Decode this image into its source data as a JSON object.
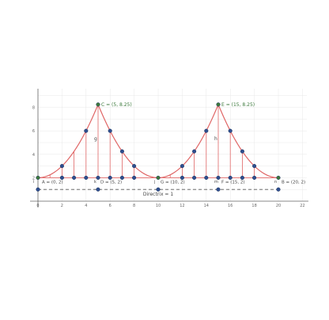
{
  "axes": {
    "x_ticks": [
      "0",
      "2",
      "4",
      "6",
      "8",
      "10",
      "12",
      "14",
      "16",
      "18",
      "20",
      "22"
    ],
    "y_ticks": [
      "2",
      "4",
      "6",
      "8"
    ]
  },
  "points": {
    "A": "A = (0, 2)",
    "B": "B = (20, 2)",
    "C": "C = (5, 8.25)",
    "D": "D = (5, 2)",
    "E": "E = (15, 8.25)",
    "F": "F = (15, 2)",
    "G": "G = (10, 2)"
  },
  "segment_labels": {
    "g": "g",
    "h": "h",
    "i": "i",
    "j": "j",
    "k": "k",
    "m": "m",
    "n": "n"
  },
  "directrix_label": "Directrix = 1",
  "colors": {
    "curve": "#e06666",
    "vertical": "#e06666",
    "directrix": "#555555",
    "point_fill": "#2f4f8f",
    "point_stroke": "#1a2f5c",
    "highlight_point": "#3d7a3d",
    "axis": "#666666",
    "grid": "#e8e8e8",
    "label_text": "#444444",
    "green_label": "#3d7a3d"
  }
}
